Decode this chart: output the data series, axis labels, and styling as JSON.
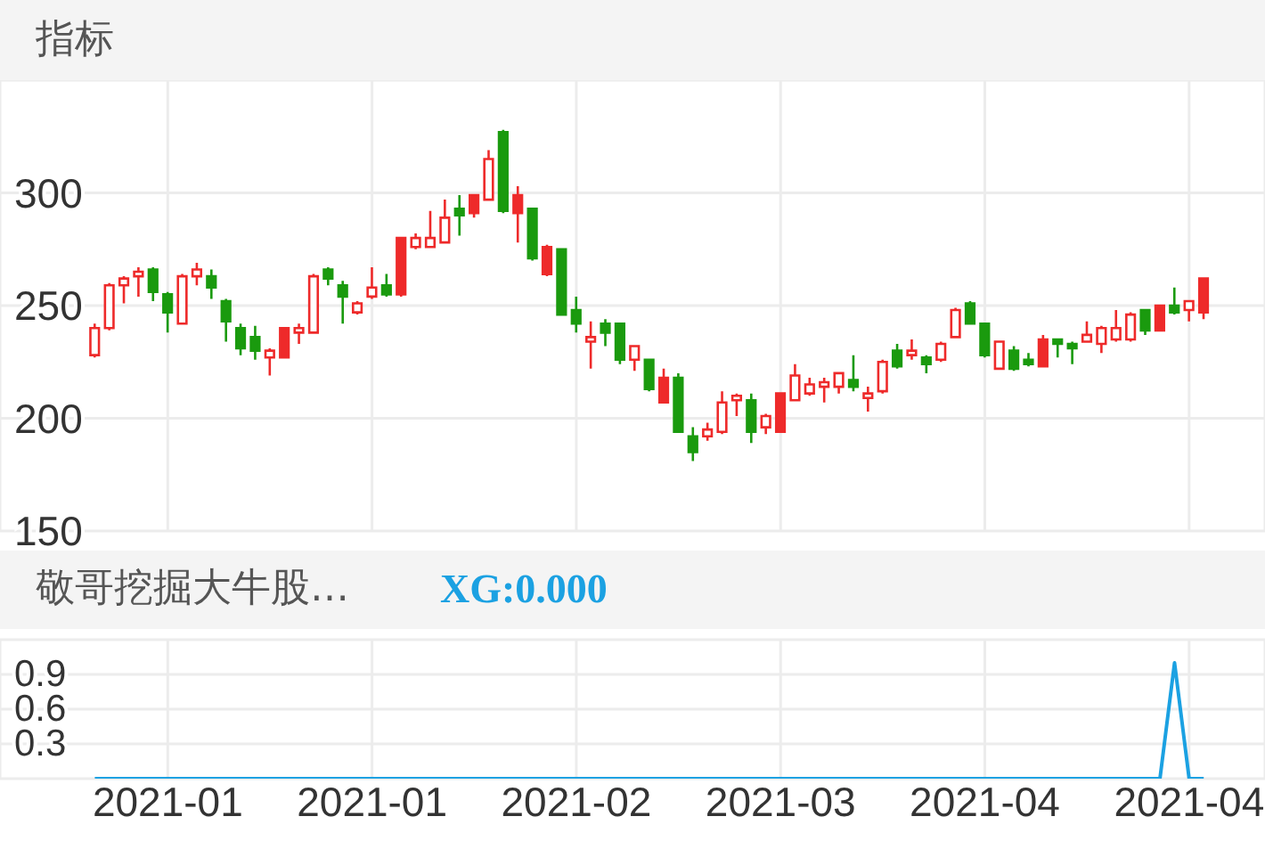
{
  "chart_data": [
    {
      "type": "candlestick",
      "title": "指标",
      "categories": [
        null,
        null,
        null,
        null,
        null,
        "2021-01",
        null,
        null,
        null,
        null,
        null,
        null,
        null,
        null,
        null,
        null,
        null,
        null,
        null,
        "2021-01",
        null,
        null,
        null,
        null,
        null,
        null,
        null,
        null,
        null,
        null,
        null,
        null,
        null,
        "2021-02",
        null,
        null,
        null,
        null,
        null,
        null,
        null,
        null,
        null,
        null,
        null,
        null,
        null,
        "2021-03",
        null,
        null,
        null,
        null,
        null,
        null,
        null,
        null,
        null,
        null,
        null,
        null,
        null,
        "2021-04",
        null,
        null,
        null,
        null,
        null,
        null,
        null,
        null,
        null,
        null,
        null,
        null,
        null,
        "2021-04",
        null
      ],
      "ohlc": [
        [
          228,
          242,
          227,
          240
        ],
        [
          240,
          260,
          239,
          259
        ],
        [
          259,
          263,
          251,
          262
        ],
        [
          263,
          267,
          254,
          265
        ],
        [
          266,
          267,
          252,
          256
        ],
        [
          255,
          256,
          238,
          247
        ],
        [
          242,
          264,
          242,
          263
        ],
        [
          263,
          269,
          259,
          266
        ],
        [
          263,
          266,
          253,
          258
        ],
        [
          252,
          253,
          234,
          243
        ],
        [
          240,
          242,
          228,
          231
        ],
        [
          236,
          241,
          226,
          230
        ],
        [
          227,
          231,
          219,
          230
        ],
        [
          240,
          240,
          227,
          227
        ],
        [
          238,
          242,
          233,
          240
        ],
        [
          238,
          264,
          238,
          263
        ],
        [
          266,
          267,
          259,
          262
        ],
        [
          259,
          261,
          242,
          254
        ],
        [
          247,
          252,
          246,
          251
        ],
        [
          254,
          267,
          253,
          258
        ],
        [
          259,
          264,
          254,
          255
        ],
        [
          280,
          280,
          254,
          255
        ],
        [
          276,
          282,
          275,
          280
        ],
        [
          276,
          292,
          276,
          280
        ],
        [
          278,
          297,
          278,
          289
        ],
        [
          293,
          299,
          281,
          290
        ],
        [
          299,
          299,
          289,
          291
        ],
        [
          297,
          319,
          297,
          315
        ],
        [
          327,
          328,
          291,
          292
        ],
        [
          299,
          303,
          278,
          291
        ],
        [
          293,
          293,
          270,
          271
        ],
        [
          276,
          277,
          263,
          264
        ],
        [
          275,
          275,
          246,
          246
        ],
        [
          248,
          254,
          238,
          242
        ],
        [
          234,
          243,
          222,
          236
        ],
        [
          242,
          244,
          232,
          238
        ],
        [
          242,
          242,
          224,
          226
        ],
        [
          226,
          232,
          221,
          232
        ],
        [
          226,
          226,
          212,
          213
        ],
        [
          218,
          222,
          207,
          207
        ],
        [
          218,
          220,
          194,
          194
        ],
        [
          192,
          196,
          181,
          185
        ],
        [
          192,
          198,
          190,
          195
        ],
        [
          194,
          212,
          193,
          207
        ],
        [
          208,
          211,
          201,
          210
        ],
        [
          208,
          211,
          189,
          194
        ],
        [
          196,
          202,
          193,
          201
        ],
        [
          211,
          211,
          194,
          194
        ],
        [
          208,
          224,
          208,
          219
        ],
        [
          211,
          218,
          210,
          215
        ],
        [
          214,
          218,
          207,
          216
        ],
        [
          214,
          220,
          211,
          220
        ],
        [
          217,
          228,
          212,
          214
        ],
        [
          209,
          214,
          203,
          211
        ],
        [
          212,
          226,
          211,
          225
        ],
        [
          230,
          233,
          222,
          223
        ],
        [
          228,
          235,
          226,
          230
        ],
        [
          227,
          228,
          220,
          224
        ],
        [
          226,
          234,
          225,
          233
        ],
        [
          236,
          249,
          236,
          248
        ],
        [
          251,
          252,
          242,
          242
        ],
        [
          242,
          242,
          227,
          228
        ],
        [
          222,
          234,
          222,
          234
        ],
        [
          230,
          232,
          221,
          222
        ],
        [
          226,
          229,
          223,
          224
        ],
        [
          235,
          237,
          223,
          223
        ],
        [
          235,
          235,
          227,
          233
        ],
        [
          233,
          234,
          224,
          231
        ],
        [
          234,
          243,
          234,
          237
        ],
        [
          233,
          241,
          229,
          240
        ],
        [
          235,
          248,
          234,
          240
        ],
        [
          235,
          247,
          234,
          246
        ],
        [
          248,
          248,
          237,
          239
        ],
        [
          250,
          250,
          239,
          239
        ],
        [
          250,
          258,
          246,
          247
        ],
        [
          248,
          252,
          243,
          252
        ],
        [
          262,
          262,
          244,
          247
        ]
      ],
      "colors": [
        "#ee2a2a",
        "#ee2a2a",
        "#ee2a2a",
        "#ee2a2a",
        "#1a9a0e",
        "#1a9a0e",
        "#ee2a2a",
        "#ee2a2a",
        "#1a9a0e",
        "#1a9a0e",
        "#1a9a0e",
        "#1a9a0e",
        "#ee2a2a",
        "#ee2a2a",
        "#ee2a2a",
        "#ee2a2a",
        "#1a9a0e",
        "#1a9a0e",
        "#ee2a2a",
        "#ee2a2a",
        "#1a9a0e",
        "#ee2a2a",
        "#ee2a2a",
        "#ee2a2a",
        "#ee2a2a",
        "#1a9a0e",
        "#ee2a2a",
        "#ee2a2a",
        "#1a9a0e",
        "#ee2a2a",
        "#1a9a0e",
        "#ee2a2a",
        "#1a9a0e",
        "#1a9a0e",
        "#ee2a2a",
        "#1a9a0e",
        "#1a9a0e",
        "#ee2a2a",
        "#1a9a0e",
        "#ee2a2a",
        "#1a9a0e",
        "#1a9a0e",
        "#ee2a2a",
        "#ee2a2a",
        "#ee2a2a",
        "#1a9a0e",
        "#ee2a2a",
        "#ee2a2a",
        "#ee2a2a",
        "#ee2a2a",
        "#ee2a2a",
        "#ee2a2a",
        "#1a9a0e",
        "#ee2a2a",
        "#ee2a2a",
        "#1a9a0e",
        "#ee2a2a",
        "#1a9a0e",
        "#ee2a2a",
        "#ee2a2a",
        "#1a9a0e",
        "#1a9a0e",
        "#ee2a2a",
        "#1a9a0e",
        "#1a9a0e",
        "#ee2a2a",
        "#1a9a0e",
        "#1a9a0e",
        "#ee2a2a",
        "#ee2a2a",
        "#ee2a2a",
        "#ee2a2a",
        "#1a9a0e",
        "#ee2a2a",
        "#1a9a0e",
        "#ee2a2a",
        "#ee2a2a"
      ],
      "ylim": [
        150,
        350
      ],
      "yticks": [
        150,
        200,
        250,
        300
      ],
      "grid": true,
      "tick_labels": "y"
    },
    {
      "type": "line",
      "title": "敬哥挖掘大牛股…",
      "categories": [
        null,
        null,
        null,
        null,
        null,
        "2021-01",
        null,
        null,
        null,
        null,
        null,
        null,
        null,
        null,
        null,
        null,
        null,
        null,
        null,
        "2021-01",
        null,
        null,
        null,
        null,
        null,
        null,
        null,
        null,
        null,
        null,
        null,
        null,
        null,
        "2021-02",
        null,
        null,
        null,
        null,
        null,
        null,
        null,
        null,
        null,
        null,
        null,
        null,
        null,
        "2021-03",
        null,
        null,
        null,
        null,
        null,
        null,
        null,
        null,
        null,
        null,
        null,
        null,
        null,
        "2021-04",
        null,
        null,
        null,
        null,
        null,
        null,
        null,
        null,
        null,
        null,
        null,
        null,
        null,
        "2021-04",
        null
      ],
      "series": [
        {
          "name": "XG:0.000",
          "color": "#1ba1e2",
          "values": [
            0,
            0,
            0,
            0,
            0,
            0,
            0,
            0,
            0,
            0,
            0,
            0,
            0,
            0,
            0,
            0,
            0,
            0,
            0,
            0,
            0,
            0,
            0,
            0,
            0,
            0,
            0,
            0,
            0,
            0,
            0,
            0,
            0,
            0,
            0,
            0,
            0,
            0,
            0,
            0,
            0,
            0,
            0,
            0,
            0,
            0,
            0,
            0,
            0,
            0,
            0,
            0,
            0,
            0,
            0,
            0,
            0,
            0,
            0,
            0,
            0,
            0,
            0,
            0,
            0,
            0,
            0,
            0,
            0,
            0,
            0,
            0,
            0,
            0,
            1,
            0,
            0
          ]
        }
      ],
      "ylim": [
        0,
        1.2
      ],
      "yticks": [
        {
          "value": 0,
          "label": null
        },
        0.3,
        0.6,
        0.9,
        {
          "value": 1.2,
          "label": null
        }
      ],
      "grid": true,
      "legend": "top left"
    }
  ]
}
